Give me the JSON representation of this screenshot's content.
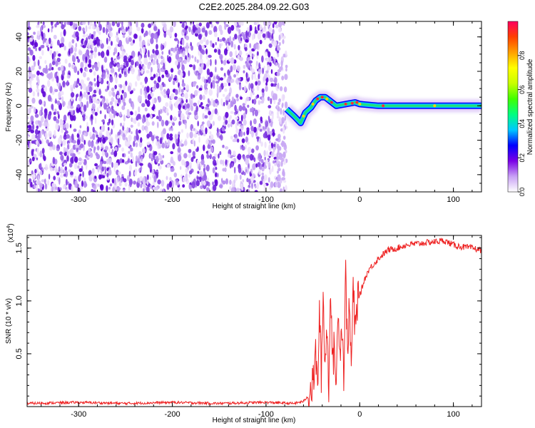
{
  "title": "C2E2.2025.284.09.22.G03",
  "chart_data": [
    {
      "type": "heatmap",
      "xlabel": "Height of straight line (km)",
      "ylabel": "Frequency (Hz)",
      "xlim": [
        -355,
        130
      ],
      "ylim": [
        -50,
        49
      ],
      "xticks": [
        -300,
        -200,
        -100,
        0,
        100
      ],
      "yticks": [
        -40,
        -20,
        0,
        20,
        40
      ],
      "grid": false,
      "noise_region_x": [
        -355,
        -78
      ],
      "signal_track": [
        {
          "x": -78,
          "y": -2
        },
        {
          "x": -70,
          "y": -6
        },
        {
          "x": -63,
          "y": -10
        },
        {
          "x": -58,
          "y": -4
        },
        {
          "x": -52,
          "y": -1
        },
        {
          "x": -47,
          "y": 3
        },
        {
          "x": -42,
          "y": 5
        },
        {
          "x": -37,
          "y": 5
        },
        {
          "x": -32,
          "y": 3
        },
        {
          "x": -25,
          "y": 0
        },
        {
          "x": -15,
          "y": 1
        },
        {
          "x": -5,
          "y": 2
        },
        {
          "x": 0,
          "y": 1
        },
        {
          "x": 20,
          "y": 0
        },
        {
          "x": 60,
          "y": 0
        },
        {
          "x": 100,
          "y": 0
        },
        {
          "x": 130,
          "y": 0
        }
      ],
      "colorbar": {
        "label": "Normalized spectral amplitude",
        "range": [
          0,
          1
        ],
        "ticks": [
          "0.0",
          "0.2",
          "0.4",
          "0.6",
          "0.8"
        ],
        "colors": [
          "#ffffff",
          "#c8a0f5",
          "#7a00e6",
          "#0000ff",
          "#00c8ff",
          "#00ff80",
          "#40ff00",
          "#c8ff00",
          "#ffff00",
          "#ffa000",
          "#ff4000",
          "#ff0060"
        ]
      }
    },
    {
      "type": "line",
      "xlabel": "Height of straight line (km)",
      "ylabel": "SNR (10 * v/v)",
      "scale_label": "(x10",
      "scale_exponent": "4",
      "xlim": [
        -355,
        130
      ],
      "ylim": [
        0,
        1.62
      ],
      "xticks": [
        -300,
        -200,
        -100,
        0,
        100
      ],
      "yticks": [
        "0.5",
        "1.0",
        "1.5"
      ],
      "color": "#ee2222",
      "series": [
        {
          "x": [
            -355,
            -300,
            -250,
            -200,
            -150,
            -100,
            -70,
            -60,
            -55,
            -50,
            -47,
            -45,
            -43,
            -41,
            -39,
            -37,
            -35,
            -33,
            -31,
            -29,
            -27,
            -25,
            -23,
            -21,
            -19,
            -17,
            -15,
            -13,
            -11,
            -9,
            -7,
            -5,
            -3,
            -1,
            0,
            5,
            10,
            15,
            20,
            25,
            30,
            40,
            50,
            60,
            70,
            80,
            90,
            100,
            110,
            120,
            130
          ],
          "y": [
            0.03,
            0.04,
            0.03,
            0.04,
            0.03,
            0.04,
            0.03,
            0.05,
            0.1,
            0.2,
            0.5,
            0.15,
            0.9,
            0.3,
            1.05,
            0.4,
            0.75,
            0.2,
            1.2,
            0.35,
            0.6,
            0.15,
            1.0,
            0.5,
            0.8,
            0.3,
            1.25,
            0.55,
            0.95,
            0.35,
            1.15,
            0.7,
            0.9,
            1.2,
            1.05,
            1.2,
            1.3,
            1.35,
            1.4,
            1.44,
            1.48,
            1.5,
            1.53,
            1.54,
            1.55,
            1.56,
            1.57,
            1.53,
            1.51,
            1.5,
            1.48
          ]
        }
      ]
    }
  ]
}
